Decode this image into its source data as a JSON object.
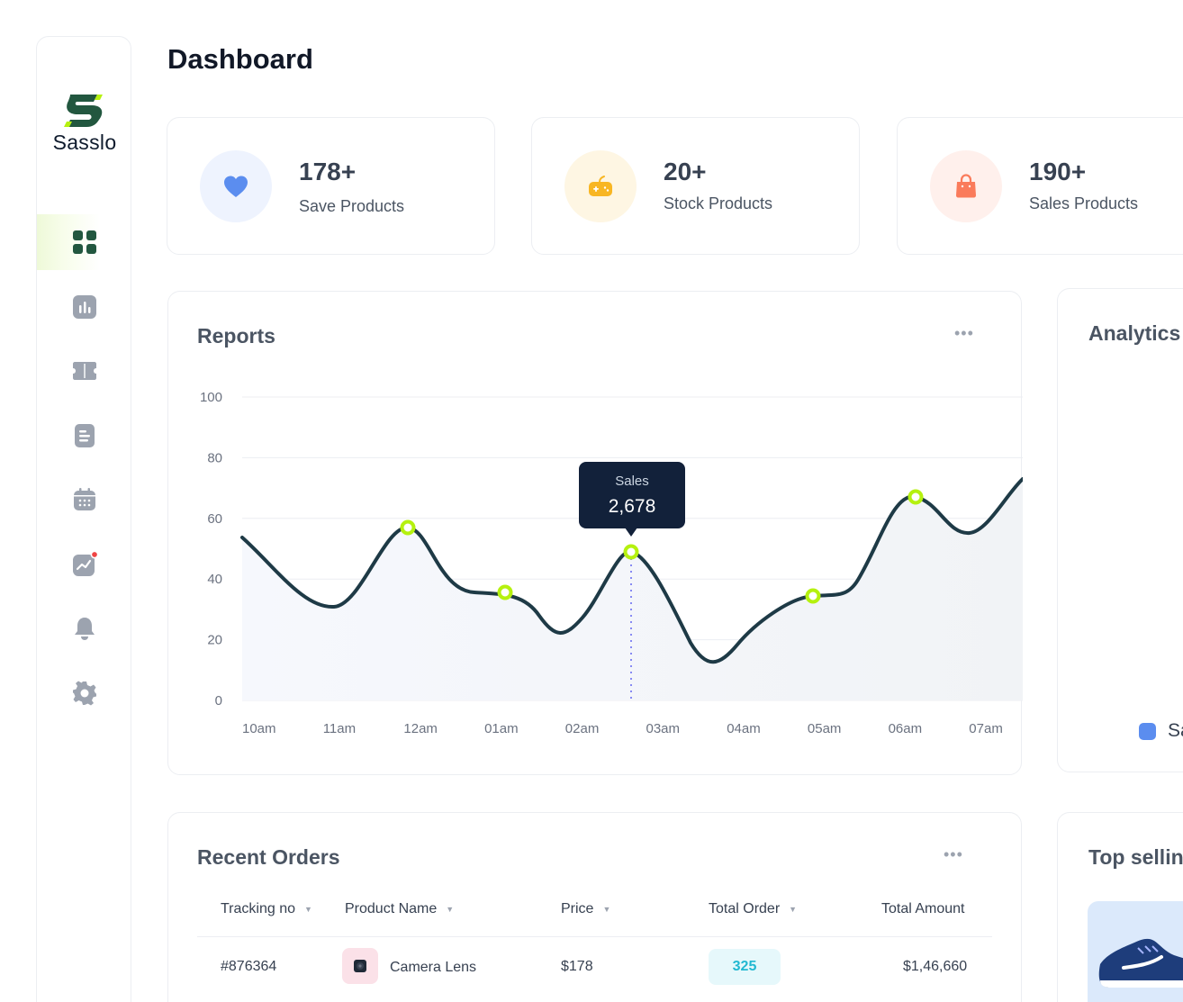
{
  "sidebar": {
    "brand": "Sasslo",
    "items": [
      {
        "icon": "dashboard-grid-icon",
        "active": true
      },
      {
        "icon": "bar-chart-icon"
      },
      {
        "icon": "ticket-icon"
      },
      {
        "icon": "document-icon"
      },
      {
        "icon": "calendar-icon"
      },
      {
        "icon": "trend-chart-icon",
        "badge": true
      },
      {
        "icon": "bell-icon"
      },
      {
        "icon": "settings-gear-icon"
      }
    ],
    "accent": "#b5f10f",
    "brand_color": "#22573f"
  },
  "header": {
    "title": "Dashboard"
  },
  "stats": [
    {
      "value": "178+",
      "label": "Save Products",
      "icon": "heart-icon",
      "color": "#5b8def",
      "bg": "#eef3fe"
    },
    {
      "value": "20+",
      "label": "Stock Products",
      "icon": "gamepad-icon",
      "color": "#f8b623",
      "bg": "#fef6e3"
    },
    {
      "value": "190+",
      "label": "Sales Products",
      "icon": "shopping-bag-icon",
      "color": "#fa7b5b",
      "bg": "#fff0ec"
    }
  ],
  "reports": {
    "title": "Reports",
    "tooltip": {
      "label": "Sales",
      "value": "2,678"
    }
  },
  "chart_data": {
    "type": "line",
    "x": [
      "10am",
      "11am",
      "12am",
      "01am",
      "02am",
      "03am",
      "04am",
      "05am",
      "06am",
      "07am"
    ],
    "ylim": [
      0,
      100
    ],
    "yticks": [
      0,
      20,
      40,
      60,
      80,
      100
    ],
    "markers": [
      {
        "x": "12am",
        "y": 57
      },
      {
        "x": "01am",
        "y": 36
      },
      {
        "x": "02am-03am",
        "y": 49
      },
      {
        "x": "05am",
        "y": 35
      },
      {
        "x": "06am",
        "y": 67
      }
    ],
    "grid": true,
    "line_color": "#1e3a46",
    "marker_color": "#b5f10f"
  },
  "analytics": {
    "title": "Analytics",
    "legend_partial": "Sa",
    "legend_color": "#5b8def"
  },
  "orders": {
    "title": "Recent Orders",
    "columns": [
      "Tracking no",
      "Product Name",
      "Price",
      "Total Order",
      "Total Amount"
    ],
    "rows": [
      {
        "tracking": "#876364",
        "product": "Camera Lens",
        "price": "$178",
        "total_order": "325",
        "total_amount": "$1,46,660"
      }
    ]
  },
  "top_selling": {
    "title": "Top sellin"
  }
}
